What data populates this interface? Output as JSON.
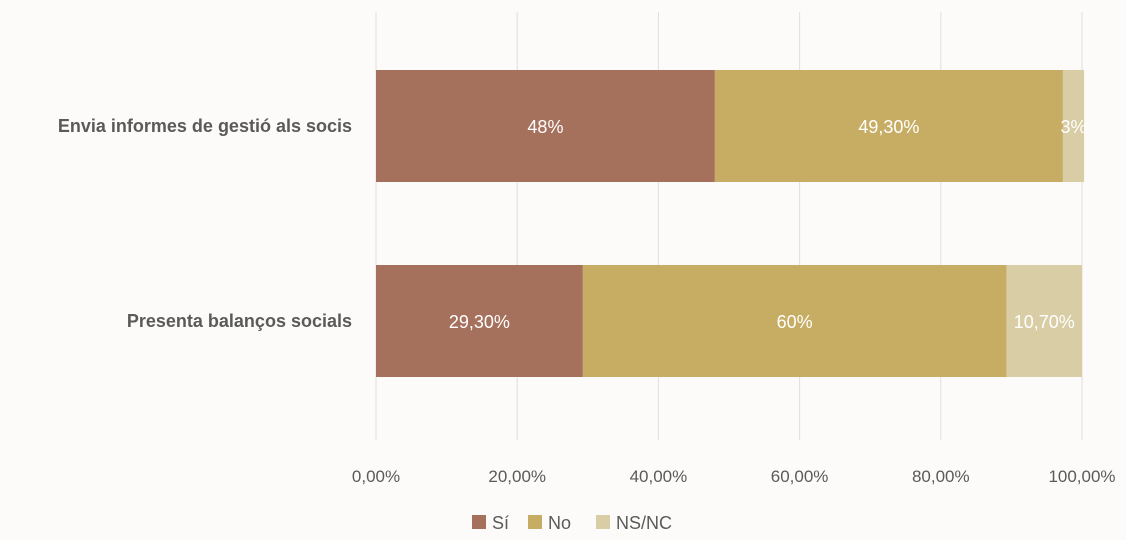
{
  "chart_data": {
    "type": "bar",
    "orientation": "horizontal",
    "stacked": true,
    "categories": [
      "Envia informes de gestió als socis",
      "Presenta balanços socials"
    ],
    "series": [
      {
        "name": "Sí",
        "values": [
          48.0,
          29.3
        ],
        "labels": [
          "48%",
          "29,30%"
        ],
        "color": "#a5705c"
      },
      {
        "name": "No",
        "values": [
          49.3,
          60.0
        ],
        "labels": [
          "49,30%",
          "60%"
        ],
        "color": "#c7ad63"
      },
      {
        "name": "NS/NC",
        "values": [
          3.0,
          10.7
        ],
        "labels": [
          "3%",
          "10,70%"
        ],
        "color": "#d9cda6"
      }
    ],
    "xlim": [
      0,
      100
    ],
    "xticks": [
      0,
      20,
      40,
      60,
      80,
      100
    ],
    "xtick_labels": [
      "0,00%",
      "20,00%",
      "40,00%",
      "60,00%",
      "80,00%",
      "100,00%"
    ],
    "grid": true,
    "legend_position": "bottom"
  }
}
